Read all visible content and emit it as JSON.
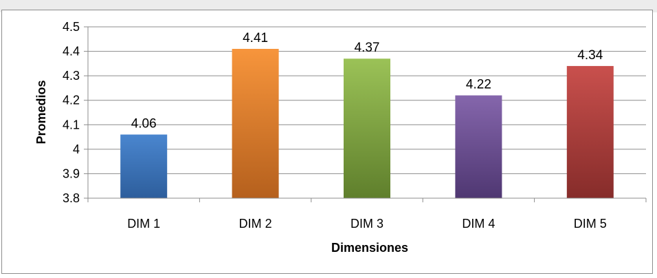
{
  "chart_data": {
    "type": "bar",
    "categories": [
      "DIM 1",
      "DIM 2",
      "DIM 3",
      "DIM 4",
      "DIM 5"
    ],
    "values": [
      4.06,
      4.41,
      4.37,
      4.22,
      4.34
    ],
    "data_labels": [
      "4.06",
      "4.41",
      "4.37",
      "4.22",
      "4.34"
    ],
    "xlabel": "Dimensiones",
    "ylabel": "Promedios",
    "ylim": [
      3.8,
      4.5
    ],
    "yticks": [
      3.8,
      3.9,
      4.0,
      4.1,
      4.2,
      4.3,
      4.4,
      4.5
    ],
    "ytick_labels": [
      "3.8",
      "3.9",
      "4",
      "4.1",
      "4.2",
      "4.3",
      "4.4",
      "4.5"
    ],
    "grid": true,
    "legend": "none",
    "colors": [
      {
        "top": "#4a86cf",
        "bottom": "#2d5e9c"
      },
      {
        "top": "#f7953c",
        "bottom": "#b5601d"
      },
      {
        "top": "#9bc257",
        "bottom": "#5f7f2c"
      },
      {
        "top": "#8566ac",
        "bottom": "#4f3772"
      },
      {
        "top": "#c9504d",
        "bottom": "#862c2a"
      }
    ]
  }
}
